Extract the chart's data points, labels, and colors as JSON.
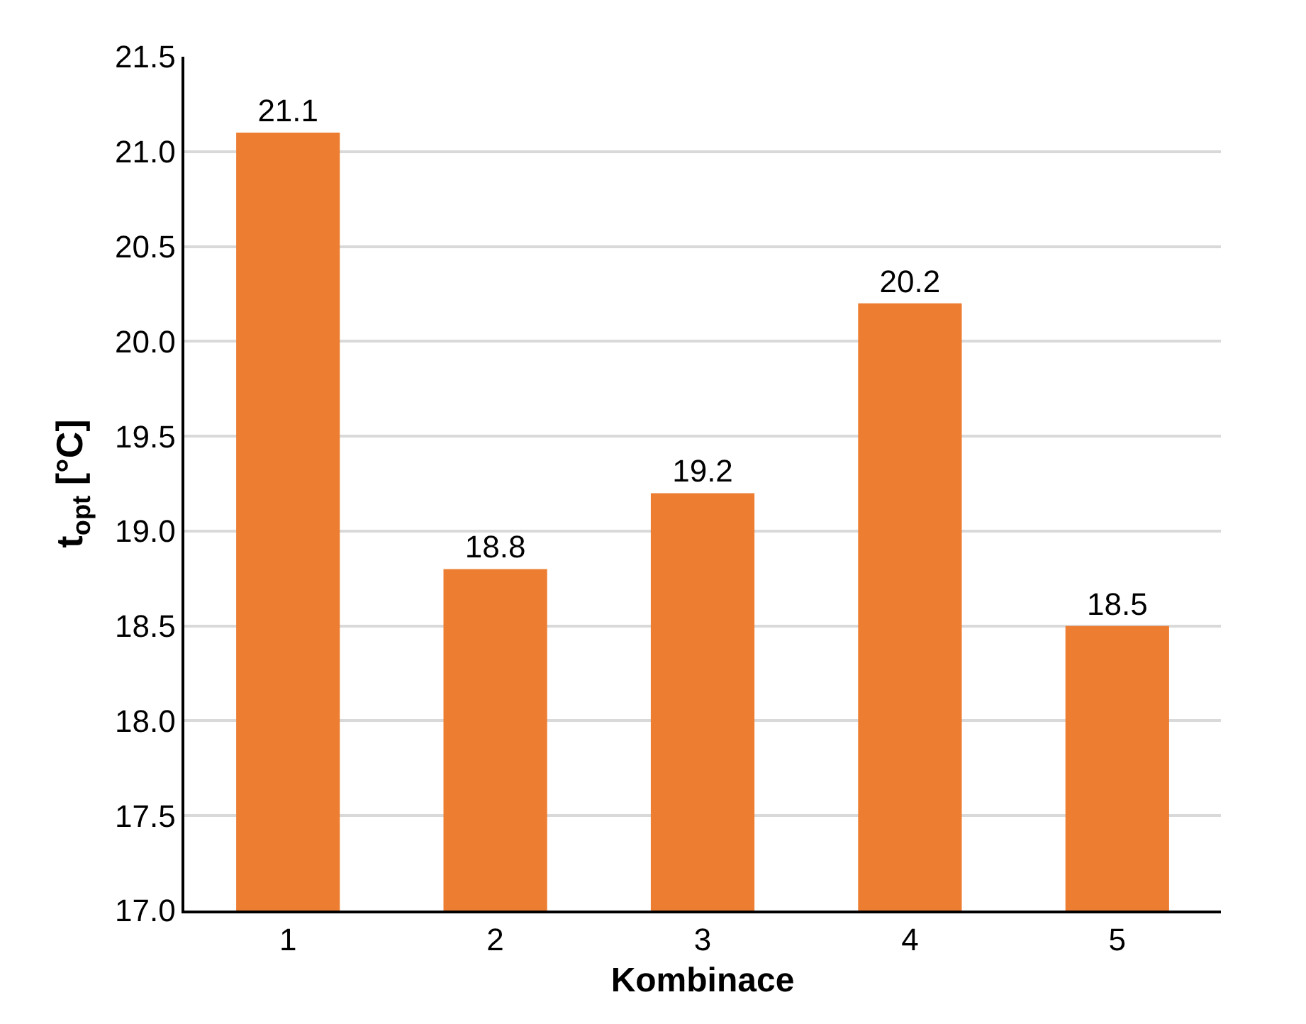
{
  "chart_data": {
    "type": "bar",
    "xlabel": "Kombinace",
    "ylabel": "t$_{opt}$ [°C]",
    "categories": [
      "1",
      "2",
      "3",
      "4",
      "5"
    ],
    "values": [
      21.1,
      18.8,
      19.2,
      20.2,
      18.5
    ],
    "color": "#ed7d31",
    "ylim": [
      17.0,
      21.5
    ],
    "yticks": [
      {
        "value": 17,
        "label": "17.0"
      },
      {
        "value": 17.5,
        "label": "17.5"
      },
      {
        "value": 18,
        "label": "18.0"
      },
      {
        "value": 18.5,
        "label": "18.5"
      },
      {
        "value": 19,
        "label": "19.0"
      },
      {
        "value": 19.5,
        "label": "19.5"
      },
      {
        "value": 20,
        "label": "20.0"
      },
      {
        "value": 20.5,
        "label": "20.5"
      },
      {
        "value": 21,
        "label": "21.0"
      },
      {
        "value": 21.5,
        "label": "21.5"
      }
    ],
    "grid": "y",
    "data_labels": true,
    "legend": false
  }
}
